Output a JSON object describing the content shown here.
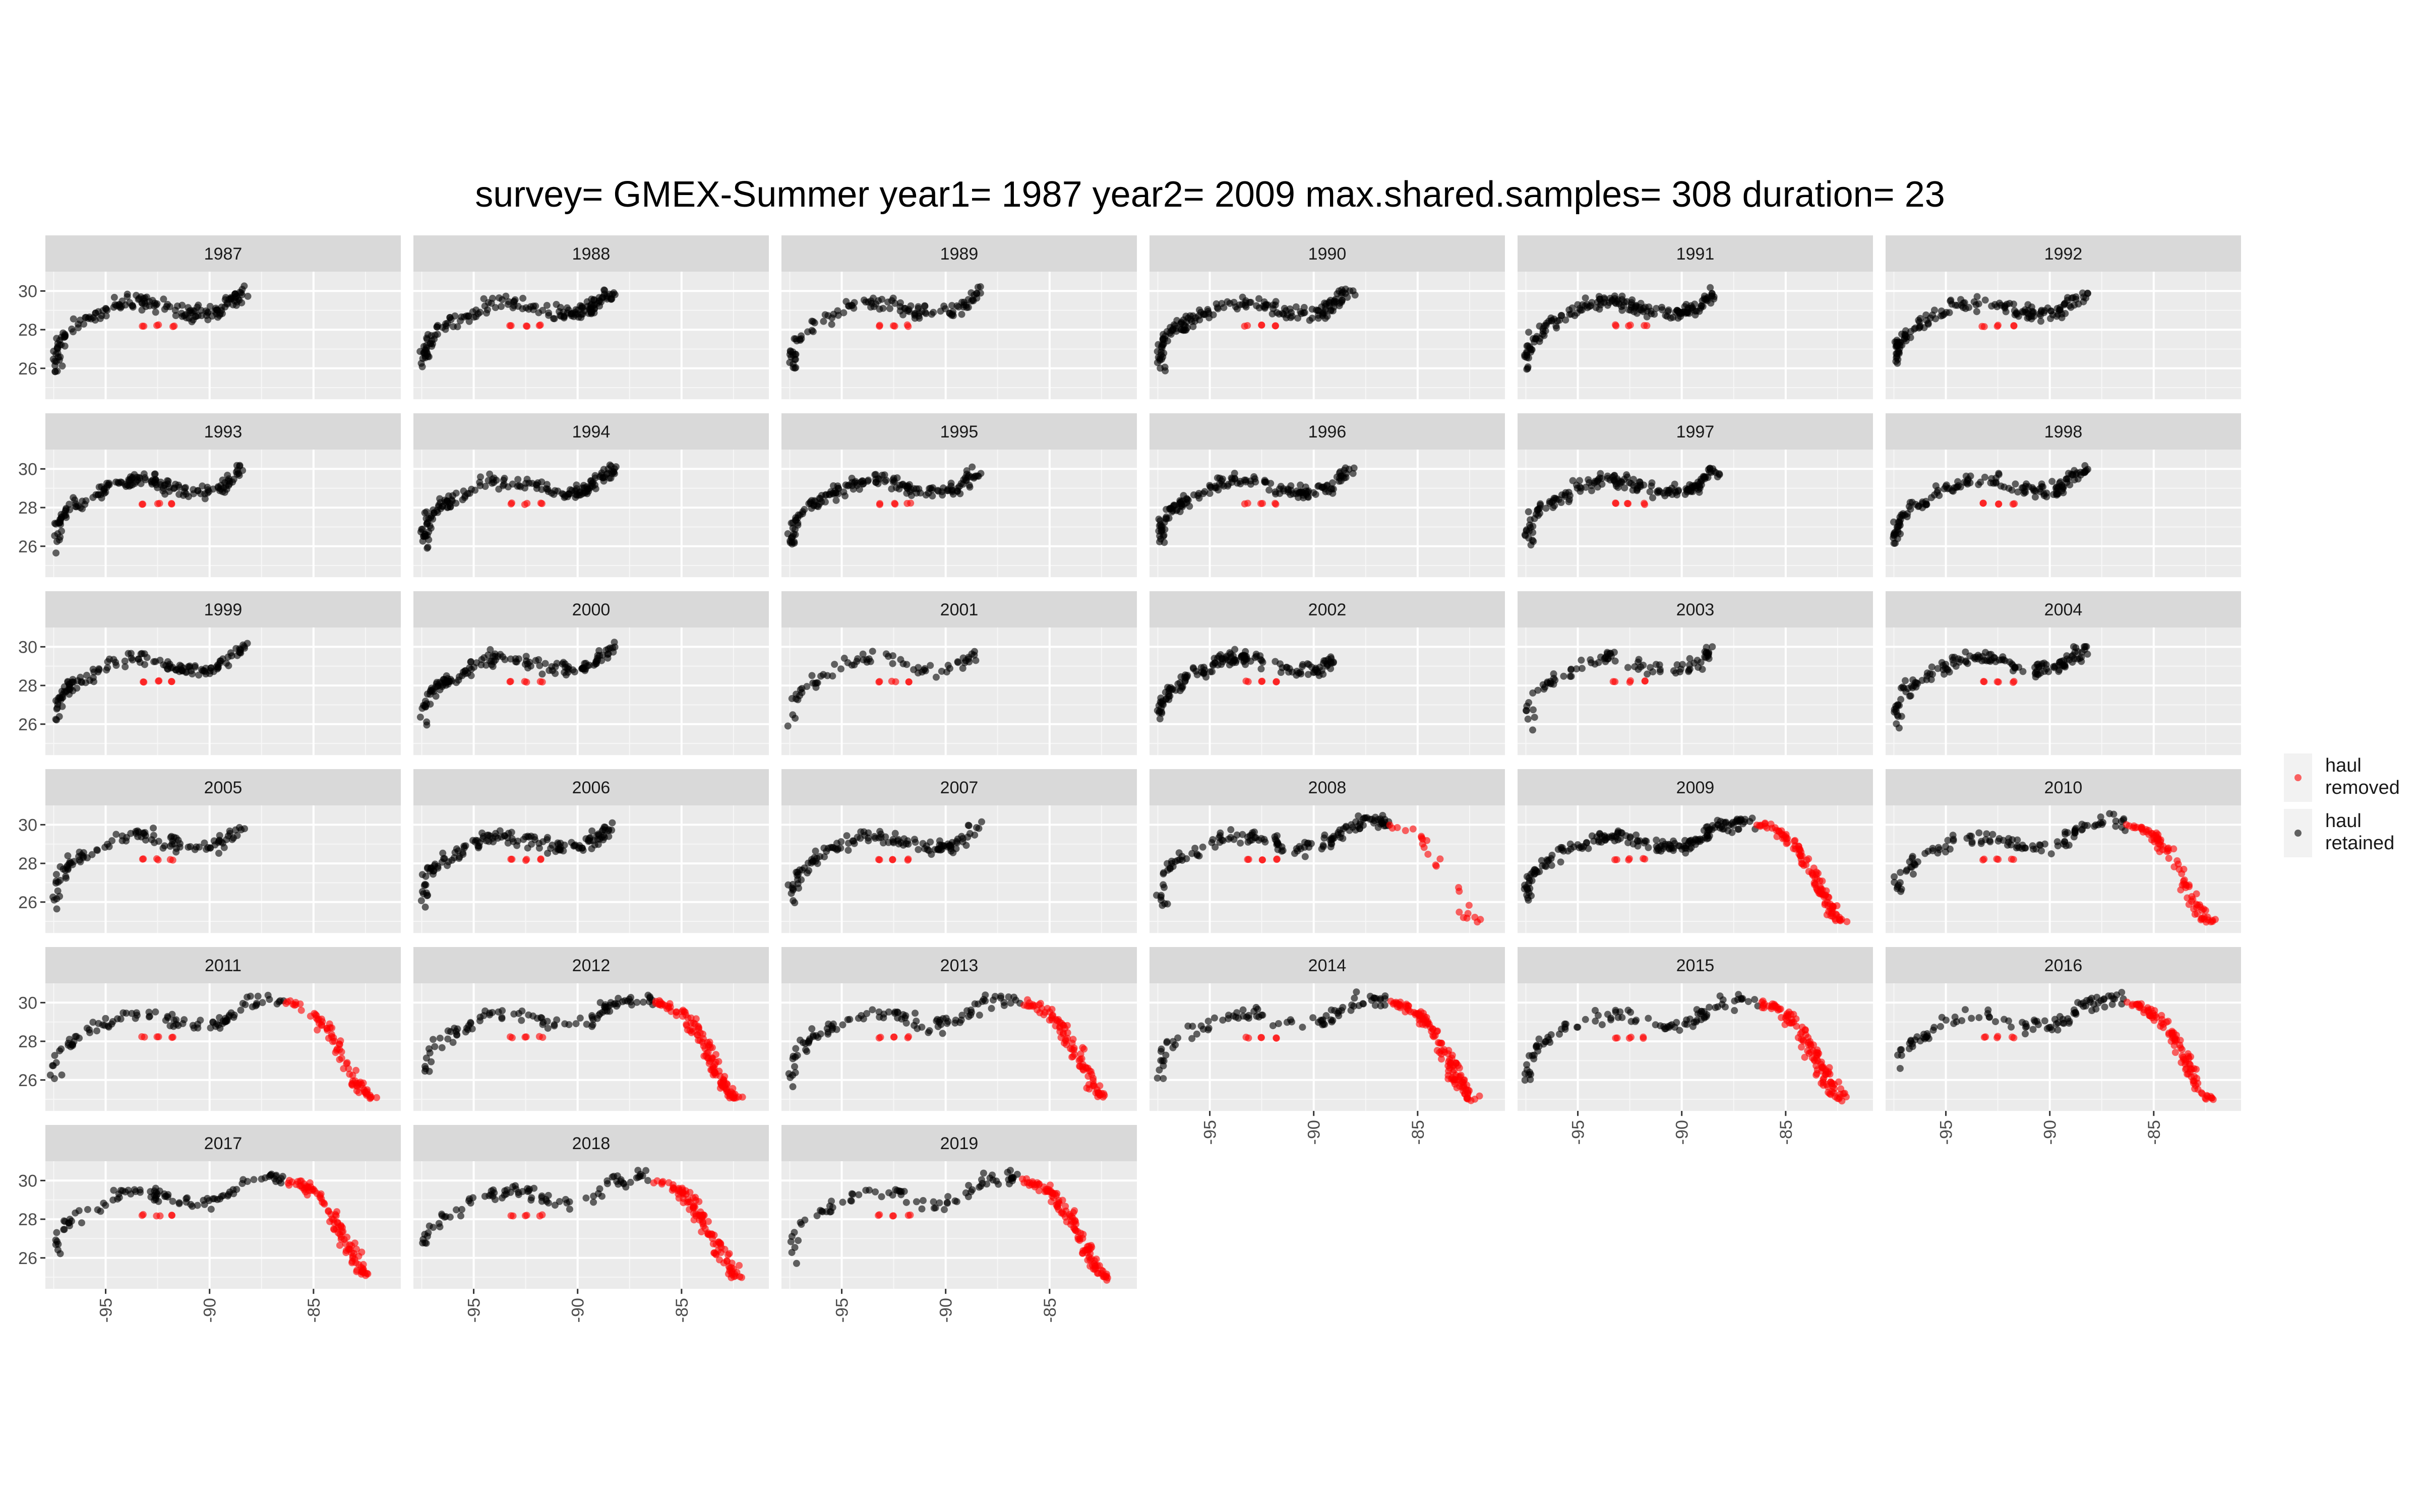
{
  "title": "survey= GMEX-Summer year1= 1987 year2= 2009 max.shared.samples= 308 duration= 23",
  "legend": [
    {
      "label": "haul\nremoved",
      "color": "#ff0000"
    },
    {
      "label": "haul\nretained",
      "color": "#000000"
    }
  ],
  "chart_data": {
    "type": "scatter",
    "facet_by": "year",
    "panels": [
      "1987",
      "1988",
      "1989",
      "1990",
      "1991",
      "1992",
      "1993",
      "1994",
      "1995",
      "1996",
      "1997",
      "1998",
      "1999",
      "2000",
      "2001",
      "2002",
      "2003",
      "2004",
      "2005",
      "2006",
      "2007",
      "2008",
      "2009",
      "2010",
      "2011",
      "2012",
      "2013",
      "2014",
      "2015",
      "2016",
      "2017",
      "2018",
      "2019"
    ],
    "x_ticks": [
      -95,
      -90,
      -85
    ],
    "y_ticks": [
      26,
      28,
      30
    ],
    "xlim": [
      -97.9,
      -80.8
    ],
    "ylim": [
      24.4,
      31.0
    ],
    "grid": true,
    "legend_position": "right",
    "colors": {
      "removed": "#ff0000",
      "retained": "#000000",
      "panel_bg": "#ebebeb",
      "strip_bg": "#d9d9d9"
    },
    "coast_retained": [
      [
        -97.3,
        26.0
      ],
      [
        -97.4,
        26.8
      ],
      [
        -97.2,
        27.4
      ],
      [
        -96.8,
        27.9
      ],
      [
        -96.2,
        28.3
      ],
      [
        -95.4,
        28.7
      ],
      [
        -94.6,
        29.2
      ],
      [
        -93.8,
        29.4
      ],
      [
        -93.0,
        29.4
      ],
      [
        -92.2,
        29.2
      ],
      [
        -91.4,
        28.9
      ],
      [
        -90.6,
        28.8
      ],
      [
        -89.8,
        28.9
      ],
      [
        -89.3,
        29.1
      ],
      [
        -88.8,
        29.6
      ],
      [
        -88.2,
        30.0
      ],
      [
        -87.5,
        30.1
      ],
      [
        -86.8,
        30.2
      ],
      [
        -86.2,
        30.0
      ]
    ],
    "coast_removed": [
      [
        -86.2,
        30.0
      ],
      [
        -85.6,
        29.8
      ],
      [
        -85.0,
        29.4
      ],
      [
        -84.6,
        29.0
      ],
      [
        -84.2,
        28.4
      ],
      [
        -83.8,
        27.7
      ],
      [
        -83.5,
        27.0
      ],
      [
        -83.2,
        26.4
      ],
      [
        -82.9,
        25.8
      ],
      [
        -82.6,
        25.3
      ],
      [
        -82.3,
        25.0
      ]
    ],
    "removed_cluster": [
      [
        -93.2,
        28.2
      ],
      [
        -92.5,
        28.2
      ],
      [
        -91.8,
        28.2
      ]
    ],
    "panels_detail": {
      "1987": {
        "coast_end": -88.2,
        "removed_tail": 0,
        "count": 170
      },
      "1988": {
        "coast_end": -88.2,
        "removed_tail": 0,
        "count": 165
      },
      "1989": {
        "coast_end": -88.4,
        "removed_tail": 0,
        "count": 120
      },
      "1990": {
        "coast_end": -88.2,
        "removed_tail": 0,
        "count": 175
      },
      "1991": {
        "coast_end": -88.4,
        "removed_tail": 0,
        "count": 180
      },
      "1992": {
        "coast_end": -88.2,
        "removed_tail": 0,
        "count": 150
      },
      "1993": {
        "coast_end": -88.4,
        "removed_tail": 0,
        "count": 165
      },
      "1994": {
        "coast_end": -88.2,
        "removed_tail": 0,
        "count": 170
      },
      "1995": {
        "coast_end": -88.4,
        "removed_tail": 0,
        "count": 165
      },
      "1996": {
        "coast_end": -88.2,
        "removed_tail": 0,
        "count": 165
      },
      "1997": {
        "coast_end": -88.3,
        "removed_tail": 0,
        "count": 170
      },
      "1998": {
        "coast_end": -88.2,
        "removed_tail": 0,
        "count": 150
      },
      "1999": {
        "coast_end": -88.3,
        "removed_tail": 0,
        "count": 140
      },
      "2000": {
        "coast_end": -88.2,
        "removed_tail": 0,
        "count": 150
      },
      "2001": {
        "coast_end": -88.5,
        "removed_tail": 0,
        "count": 70
      },
      "2002": {
        "coast_end": -89.0,
        "removed_tail": 0,
        "count": 155
      },
      "2003": {
        "coast_end": -88.4,
        "removed_tail": 0,
        "count": 90
      },
      "2004": {
        "coast_end": -88.2,
        "removed_tail": 0,
        "count": 150
      },
      "2005": {
        "coast_end": -88.3,
        "removed_tail": 0,
        "count": 110
      },
      "2006": {
        "coast_end": -88.2,
        "removed_tail": 0,
        "count": 145
      },
      "2007": {
        "coast_end": -88.4,
        "removed_tail": 0,
        "count": 130
      },
      "2008": {
        "coast_end": -86.4,
        "removed_tail": 25,
        "count": 170
      },
      "2009": {
        "coast_end": -86.4,
        "removed_tail": 110,
        "count": 300
      },
      "2010": {
        "coast_end": -86.4,
        "removed_tail": 90,
        "count": 200
      },
      "2011": {
        "coast_end": -86.4,
        "removed_tail": 80,
        "count": 180
      },
      "2012": {
        "coast_end": -86.4,
        "removed_tail": 120,
        "count": 220
      },
      "2013": {
        "coast_end": -86.4,
        "removed_tail": 95,
        "count": 200
      },
      "2014": {
        "coast_end": -86.4,
        "removed_tail": 130,
        "count": 220
      },
      "2015": {
        "coast_end": -86.4,
        "removed_tail": 120,
        "count": 220
      },
      "2016": {
        "coast_end": -86.4,
        "removed_tail": 100,
        "count": 200
      },
      "2017": {
        "coast_end": -86.4,
        "removed_tail": 100,
        "count": 200
      },
      "2018": {
        "coast_end": -86.4,
        "removed_tail": 110,
        "count": 200
      },
      "2019": {
        "coast_end": -86.4,
        "removed_tail": 120,
        "count": 200
      }
    }
  }
}
